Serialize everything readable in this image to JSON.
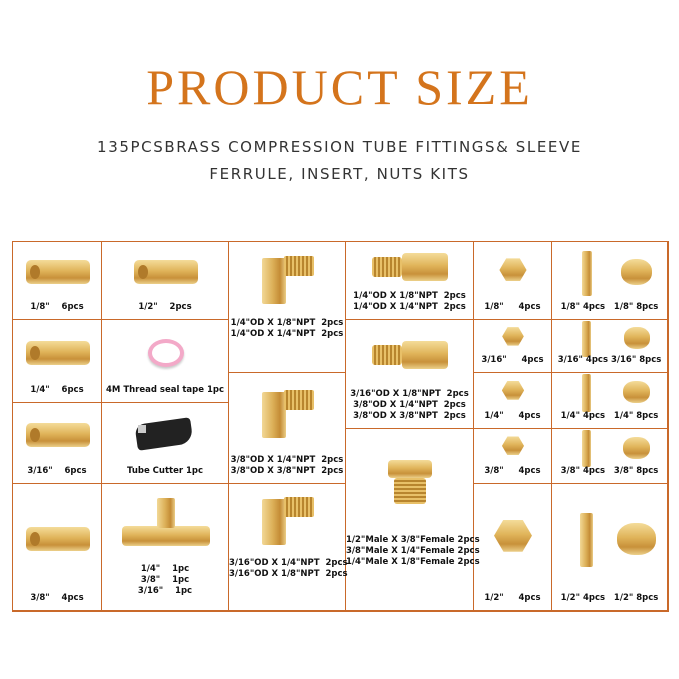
{
  "header": {
    "title": "PRODUCT SIZE",
    "subtitle_line1": "135PCSBRASS COMPRESSION TUBE FITTINGS& SLEEVE",
    "subtitle_line2": "FERRULE, INSERT, NUTS KITS"
  },
  "colors": {
    "accent": "#d4741c",
    "border": "#c9692a",
    "brass": "#d9aa52"
  },
  "cells": [
    {
      "name": "union-1-8",
      "icon": "union",
      "lines": [
        "1/8\"    6pcs"
      ]
    },
    {
      "name": "union-1-4",
      "icon": "union",
      "lines": [
        "1/4\"    6pcs"
      ]
    },
    {
      "name": "union-3-16",
      "icon": "union",
      "lines": [
        "3/16\"    6pcs"
      ]
    },
    {
      "name": "union-3-8",
      "icon": "union",
      "lines": [
        "3/8\"    4pcs"
      ]
    },
    {
      "name": "union-1-2",
      "icon": "union",
      "lines": [
        "1/2\"    2pcs"
      ]
    },
    {
      "name": "thread-seal-tape",
      "icon": "tape",
      "lines": [
        "4M Thread seal tape 1pc"
      ]
    },
    {
      "name": "tube-cutter",
      "icon": "cutter",
      "lines": [
        "Tube Cutter 1pc"
      ]
    },
    {
      "name": "tee",
      "icon": "tee",
      "lines": [
        "1/4\"    1pc",
        "3/8\"    1pc",
        "3/16\"    1pc"
      ]
    },
    {
      "name": "elbow-1-4od",
      "icon": "elbow",
      "lines": [
        "1/4\"OD X 1/8\"NPT  2pcs",
        "1/4\"OD X 1/4\"NPT  2pcs"
      ]
    },
    {
      "name": "elbow-3-8od",
      "icon": "elbow",
      "lines": [
        "3/8\"OD X 1/4\"NPT  2pcs",
        "3/8\"OD X 3/8\"NPT  2pcs"
      ]
    },
    {
      "name": "elbow-3-16od",
      "icon": "elbow",
      "lines": [
        "3/16\"OD X 1/4\"NPT  2pcs",
        "3/16\"OD X 1/8\"NPT  2pcs"
      ]
    },
    {
      "name": "connector-1-4od",
      "icon": "connector",
      "lines": [
        "1/4\"OD X 1/8\"NPT  2pcs",
        "1/4\"OD X 1/4\"NPT  2pcs"
      ]
    },
    {
      "name": "connector-mixed",
      "icon": "connector",
      "lines": [
        "3/16\"OD X 1/8\"NPT  2pcs",
        "3/8\"OD X 1/4\"NPT  2pcs",
        "3/8\"OD X 3/8\"NPT  2pcs"
      ]
    },
    {
      "name": "bushing",
      "icon": "bushing",
      "lines": [
        "1/2\"Male X 3/8\"Female 2pcs",
        "3/8\"Male X 1/4\"Female 2pcs",
        "1/4\"Male X 1/8\"Female 2pcs"
      ]
    },
    {
      "name": "nut-1-8",
      "icon": "nut",
      "lines": [
        "1/8\"     4pcs"
      ]
    },
    {
      "name": "nut-3-16",
      "icon": "nut",
      "lines": [
        "3/16\"     4pcs"
      ]
    },
    {
      "name": "nut-1-4",
      "icon": "nut",
      "lines": [
        "1/4\"     4pcs"
      ]
    },
    {
      "name": "nut-3-8",
      "icon": "nut",
      "lines": [
        "3/8\"     4pcs"
      ]
    },
    {
      "name": "nut-1-2",
      "icon": "nut",
      "lines": [
        "1/2\"     4pcs"
      ]
    },
    {
      "name": "insert-ferrule-1-8",
      "icon": "insert-ferrule",
      "lines": [
        "1/8\" 4pcs   1/8\" 8pcs"
      ]
    },
    {
      "name": "insert-ferrule-3-16",
      "icon": "insert-ferrule",
      "lines": [
        "3/16\" 4pcs 3/16\" 8pcs"
      ]
    },
    {
      "name": "insert-ferrule-1-4",
      "icon": "insert-ferrule",
      "lines": [
        "1/4\" 4pcs   1/4\" 8pcs"
      ]
    },
    {
      "name": "insert-ferrule-3-8",
      "icon": "insert-ferrule",
      "lines": [
        "3/8\" 4pcs   3/8\" 8pcs"
      ]
    },
    {
      "name": "insert-ferrule-1-2",
      "icon": "insert-ferrule",
      "lines": [
        "1/2\" 4pcs   1/2\" 8pcs"
      ]
    }
  ]
}
